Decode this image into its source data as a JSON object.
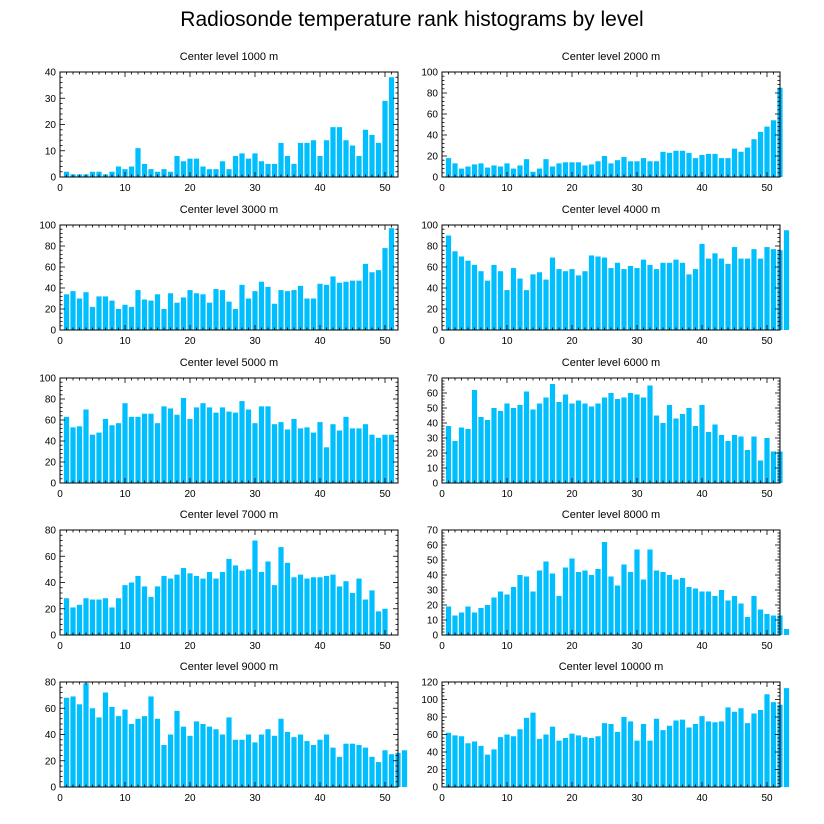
{
  "title": "Radiosonde temperature rank histograms by level",
  "bar_color": "#00bfff",
  "chart_data": [
    {
      "type": "bar",
      "title": "Center level 1000 m",
      "xlim": [
        0,
        52
      ],
      "ylim": [
        0,
        40
      ],
      "xticks": [
        0,
        10,
        20,
        30,
        40,
        50
      ],
      "yticks": [
        0,
        10,
        20,
        30,
        40
      ],
      "values": [
        2,
        1,
        1,
        1,
        2,
        2,
        1,
        2,
        4,
        3,
        4,
        11,
        5,
        3,
        2,
        3,
        2,
        8,
        6,
        7,
        7,
        4,
        3,
        3,
        6,
        3,
        8,
        9,
        7,
        9,
        6,
        5,
        5,
        13,
        8,
        5,
        13,
        13,
        14,
        8,
        14,
        19,
        19,
        14,
        12,
        8,
        18,
        16,
        13,
        29,
        38
      ]
    },
    {
      "type": "bar",
      "title": "Center level 2000 m",
      "xlim": [
        0,
        52
      ],
      "ylim": [
        0,
        100
      ],
      "xticks": [
        0,
        10,
        20,
        30,
        40,
        50
      ],
      "yticks": [
        0,
        20,
        40,
        60,
        80,
        100
      ],
      "values": [
        18,
        13,
        8,
        10,
        12,
        13,
        9,
        11,
        10,
        13,
        8,
        11,
        17,
        5,
        8,
        17,
        10,
        13,
        14,
        14,
        14,
        11,
        12,
        15,
        20,
        13,
        16,
        19,
        15,
        15,
        18,
        15,
        15,
        24,
        23,
        25,
        25,
        23,
        18,
        21,
        22,
        22,
        18,
        18,
        27,
        24,
        28,
        36,
        43,
        48,
        54,
        85
      ]
    },
    {
      "type": "bar",
      "title": "Center level 3000 m",
      "xlim": [
        0,
        52
      ],
      "ylim": [
        0,
        100
      ],
      "xticks": [
        0,
        10,
        20,
        30,
        40,
        50
      ],
      "yticks": [
        0,
        20,
        40,
        60,
        80,
        100
      ],
      "values": [
        34,
        37,
        30,
        36,
        22,
        32,
        32,
        28,
        20,
        24,
        22,
        38,
        29,
        28,
        34,
        20,
        35,
        26,
        31,
        38,
        35,
        34,
        26,
        39,
        38,
        27,
        20,
        43,
        30,
        37,
        46,
        41,
        25,
        38,
        37,
        38,
        42,
        30,
        30,
        44,
        43,
        51,
        45,
        46,
        47,
        47,
        63,
        55,
        57,
        78,
        97
      ]
    },
    {
      "type": "bar",
      "title": "Center level 4000 m",
      "xlim": [
        0,
        52
      ],
      "ylim": [
        0,
        100
      ],
      "xticks": [
        0,
        10,
        20,
        30,
        40,
        50
      ],
      "yticks": [
        0,
        20,
        40,
        60,
        80,
        100
      ],
      "values": [
        90,
        75,
        70,
        66,
        62,
        56,
        47,
        62,
        56,
        38,
        59,
        49,
        38,
        53,
        55,
        48,
        69,
        58,
        56,
        58,
        52,
        56,
        71,
        70,
        69,
        59,
        64,
        58,
        61,
        59,
        67,
        62,
        58,
        64,
        64,
        67,
        64,
        53,
        58,
        82,
        68,
        73,
        68,
        63,
        79,
        68,
        68,
        77,
        68,
        79,
        77,
        76,
        95
      ]
    },
    {
      "type": "bar",
      "title": "Center level 5000 m",
      "xlim": [
        0,
        52
      ],
      "ylim": [
        0,
        100
      ],
      "xticks": [
        0,
        10,
        20,
        30,
        40,
        50
      ],
      "yticks": [
        0,
        20,
        40,
        60,
        80,
        100
      ],
      "values": [
        63,
        53,
        54,
        70,
        46,
        48,
        61,
        55,
        57,
        76,
        63,
        63,
        66,
        66,
        57,
        73,
        71,
        65,
        81,
        61,
        72,
        76,
        72,
        67,
        72,
        68,
        67,
        78,
        70,
        57,
        73,
        73,
        56,
        58,
        51,
        61,
        52,
        53,
        48,
        58,
        34,
        56,
        50,
        63,
        52,
        52,
        56,
        46,
        43,
        46,
        46
      ]
    },
    {
      "type": "bar",
      "title": "Center level 6000 m",
      "xlim": [
        0,
        52
      ],
      "ylim": [
        0,
        70
      ],
      "xticks": [
        0,
        10,
        20,
        30,
        40,
        50
      ],
      "yticks": [
        0,
        10,
        20,
        30,
        40,
        50,
        60,
        70
      ],
      "values": [
        38,
        28,
        37,
        36,
        62,
        44,
        42,
        50,
        48,
        53,
        50,
        52,
        61,
        49,
        53,
        57,
        66,
        54,
        59,
        53,
        55,
        53,
        51,
        53,
        57,
        60,
        56,
        57,
        60,
        59,
        57,
        65,
        45,
        40,
        52,
        43,
        46,
        50,
        38,
        52,
        34,
        39,
        32,
        28,
        32,
        31,
        22,
        31,
        15,
        30,
        21,
        21
      ]
    },
    {
      "type": "bar",
      "title": "Center level 7000 m",
      "xlim": [
        0,
        52
      ],
      "ylim": [
        0,
        80
      ],
      "xticks": [
        0,
        10,
        20,
        30,
        40,
        50
      ],
      "yticks": [
        0,
        20,
        40,
        60,
        80
      ],
      "values": [
        28,
        21,
        23,
        28,
        27,
        27,
        28,
        21,
        28,
        38,
        40,
        45,
        37,
        29,
        37,
        45,
        43,
        46,
        51,
        47,
        45,
        43,
        48,
        43,
        48,
        58,
        53,
        49,
        50,
        72,
        48,
        56,
        38,
        67,
        55,
        44,
        46,
        43,
        44,
        44,
        45,
        46,
        37,
        41,
        32,
        43,
        27,
        34,
        18,
        20
      ]
    },
    {
      "type": "bar",
      "title": "Center level 8000 m",
      "xlim": [
        0,
        52
      ],
      "ylim": [
        0,
        70
      ],
      "xticks": [
        0,
        10,
        20,
        30,
        40,
        50
      ],
      "yticks": [
        0,
        10,
        20,
        30,
        40,
        50,
        60,
        70
      ],
      "values": [
        19,
        13,
        15,
        19,
        15,
        18,
        20,
        25,
        29,
        27,
        32,
        40,
        39,
        29,
        43,
        49,
        41,
        26,
        45,
        51,
        42,
        43,
        40,
        44,
        62,
        39,
        33,
        47,
        42,
        57,
        37,
        57,
        43,
        42,
        40,
        37,
        38,
        32,
        31,
        29,
        29,
        26,
        30,
        23,
        26,
        21,
        12,
        26,
        17,
        14,
        13,
        13,
        4
      ]
    },
    {
      "type": "bar",
      "title": "Center level 9000 m",
      "xlim": [
        0,
        52
      ],
      "ylim": [
        0,
        80
      ],
      "xticks": [
        0,
        10,
        20,
        30,
        40,
        50
      ],
      "yticks": [
        0,
        20,
        40,
        60,
        80
      ],
      "values": [
        68,
        69,
        63,
        79,
        60,
        53,
        72,
        61,
        54,
        59,
        48,
        52,
        54,
        69,
        52,
        32,
        40,
        58,
        46,
        39,
        50,
        48,
        46,
        44,
        40,
        53,
        36,
        36,
        40,
        34,
        40,
        44,
        39,
        52,
        42,
        38,
        40,
        35,
        32,
        36,
        40,
        30,
        23,
        33,
        33,
        32,
        30,
        23,
        19,
        28,
        25,
        26,
        28
      ]
    },
    {
      "type": "bar",
      "title": "Center level 10000 m",
      "xlim": [
        0,
        52
      ],
      "ylim": [
        0,
        120
      ],
      "xticks": [
        0,
        10,
        20,
        30,
        40,
        50
      ],
      "yticks": [
        0,
        20,
        40,
        60,
        80,
        100,
        120
      ],
      "values": [
        62,
        59,
        58,
        50,
        52,
        47,
        37,
        43,
        57,
        60,
        58,
        66,
        79,
        85,
        55,
        60,
        69,
        53,
        56,
        61,
        59,
        57,
        56,
        58,
        73,
        72,
        63,
        80,
        75,
        53,
        72,
        53,
        78,
        65,
        70,
        76,
        77,
        68,
        72,
        81,
        75,
        74,
        75,
        91,
        86,
        90,
        73,
        84,
        88,
        106,
        97,
        94,
        113
      ]
    }
  ]
}
